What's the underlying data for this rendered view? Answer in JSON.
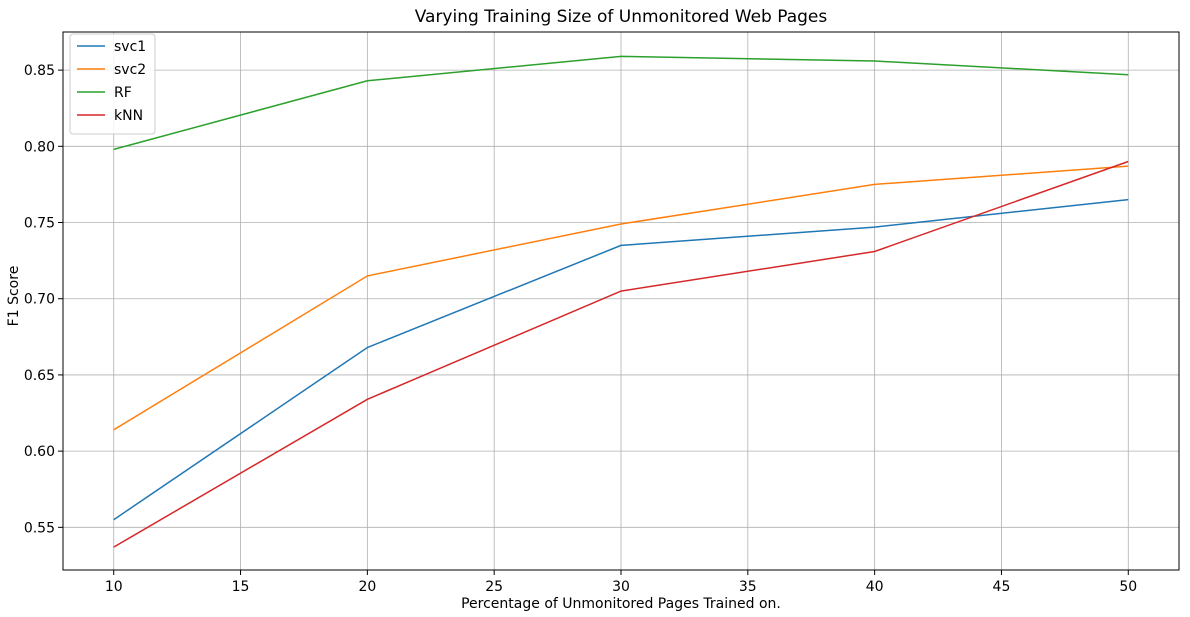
{
  "chart_data": {
    "type": "line",
    "title": "Varying Training Size of Unmonitored Web Pages",
    "xlabel": "Percentage of Unmonitored Pages Trained on.",
    "ylabel": "F1 Score",
    "x": [
      10,
      20,
      30,
      40,
      50
    ],
    "xlim": [
      8,
      52
    ],
    "ylim": [
      0.522,
      0.875
    ],
    "xticks": [
      10,
      15,
      20,
      25,
      30,
      35,
      40,
      45,
      50
    ],
    "yticks": [
      0.55,
      0.6,
      0.65,
      0.7,
      0.75,
      0.8,
      0.85
    ],
    "ytick_labels": [
      "0.55",
      "0.60",
      "0.65",
      "0.70",
      "0.75",
      "0.80",
      "0.85"
    ],
    "grid": true,
    "legend_position": "top-left",
    "series": [
      {
        "name": "svc1",
        "color": "#1f77b4",
        "values": [
          0.555,
          0.668,
          0.735,
          0.747,
          0.765
        ]
      },
      {
        "name": "svc2",
        "color": "#ff7f0e",
        "values": [
          0.614,
          0.715,
          0.749,
          0.775,
          0.787
        ]
      },
      {
        "name": "RF",
        "color": "#2ca02c",
        "values": [
          0.798,
          0.843,
          0.859,
          0.856,
          0.847
        ]
      },
      {
        "name": "kNN",
        "color": "#d62728",
        "values": [
          0.537,
          0.634,
          0.705,
          0.731,
          0.79
        ]
      }
    ]
  }
}
